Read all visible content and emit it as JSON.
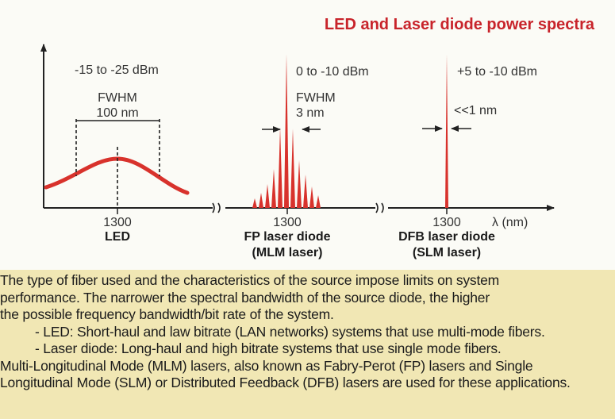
{
  "diagram": {
    "title": "LED and Laser diode power spectra",
    "led": {
      "power": "-15 to -25 dBm",
      "fwhm_label": "FWHM",
      "fwhm_value": "100 nm",
      "wavelength": "1300",
      "name": "LED"
    },
    "fp": {
      "power": "0 to -10 dBm",
      "fwhm_label": "FWHM",
      "fwhm_value": "3 nm",
      "wavelength": "1300",
      "name": "FP laser diode",
      "subname": "(MLM laser)"
    },
    "dfb": {
      "power": "+5 to -10 dBm",
      "fwhm_value": "<<1 nm",
      "wavelength": "1300",
      "name": "DFB laser diode",
      "subname": "(SLM laser)"
    },
    "axis_label": "λ (nm)",
    "colors": {
      "spectrum": "#d8322c",
      "title": "#c8242b",
      "background": "#f1e7b4"
    }
  },
  "description": {
    "line1": "The type of fiber used and the characteristics of the source impose limits on system",
    "line2": "performance. The narrower the spectral bandwidth of the source diode, the higher",
    "line3": "the possible frequency bandwidth/bit rate of the system.",
    "bullet1": "- LED: Short-haul and law bitrate (LAN networks) systems that use multi-mode fibers.",
    "bullet2": "- Laser diode: Long-haul and high bitrate systems that use single mode fibers.",
    "line4": "Multi-Longitudinal Mode (MLM) lasers, also known as Fabry-Perot (FP) lasers and Single",
    "line5": "Longitudinal Mode (SLM) or Distributed Feedback (DFB) lasers are used for these applications."
  }
}
